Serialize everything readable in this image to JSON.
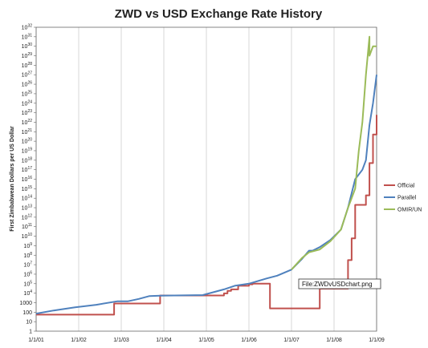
{
  "chart_data": {
    "type": "line",
    "title": "ZWD vs USD Exchange Rate History",
    "ylabel": "First Zimbabwean Dollars per US Dollar",
    "xlabel": "",
    "y_scale": "log10",
    "ylim": [
      1,
      1e+32
    ],
    "xlim": [
      "2001-01-01",
      "2009-01-01"
    ],
    "x_tick_labels": [
      "1/1/01",
      "1/1/02",
      "1/1/03",
      "1/1/04",
      "1/1/05",
      "1/1/06",
      "1/1/07",
      "1/1/08",
      "1/1/09"
    ],
    "y_tick_labels": [
      {
        "base": "1",
        "exp": ""
      },
      {
        "base": "10",
        "exp": ""
      },
      {
        "base": "100",
        "exp": ""
      },
      {
        "base": "1000",
        "exp": ""
      },
      {
        "base": "10",
        "exp": "4"
      },
      {
        "base": "10",
        "exp": "5"
      },
      {
        "base": "10",
        "exp": "6"
      },
      {
        "base": "10",
        "exp": "7"
      },
      {
        "base": "10",
        "exp": "8"
      },
      {
        "base": "10",
        "exp": "9"
      },
      {
        "base": "10",
        "exp": "10"
      },
      {
        "base": "10",
        "exp": "11"
      },
      {
        "base": "10",
        "exp": "12"
      },
      {
        "base": "10",
        "exp": "13"
      },
      {
        "base": "10",
        "exp": "14"
      },
      {
        "base": "10",
        "exp": "15"
      },
      {
        "base": "10",
        "exp": "16"
      },
      {
        "base": "10",
        "exp": "17"
      },
      {
        "base": "10",
        "exp": "18"
      },
      {
        "base": "10",
        "exp": "19"
      },
      {
        "base": "10",
        "exp": "20"
      },
      {
        "base": "10",
        "exp": "21"
      },
      {
        "base": "10",
        "exp": "22"
      },
      {
        "base": "10",
        "exp": "23"
      },
      {
        "base": "10",
        "exp": "24"
      },
      {
        "base": "10",
        "exp": "25"
      },
      {
        "base": "10",
        "exp": "26"
      },
      {
        "base": "10",
        "exp": "27"
      },
      {
        "base": "10",
        "exp": "28"
      },
      {
        "base": "10",
        "exp": "29"
      },
      {
        "base": "10",
        "exp": "30"
      },
      {
        "base": "10",
        "exp": "31"
      },
      {
        "base": "10",
        "exp": "32"
      }
    ],
    "grid": "vertical",
    "legend_position": "right",
    "annotation": "File:ZWDvUSDchart.png",
    "series": [
      {
        "name": "Official",
        "color": "#c0504d",
        "step": true,
        "points": [
          [
            "2001-01-01",
            55
          ],
          [
            "2001-03-01",
            55
          ],
          [
            "2002-07-01",
            55
          ],
          [
            "2002-11-01",
            55
          ],
          [
            "2002-11-01",
            824
          ],
          [
            "2003-12-01",
            824
          ],
          [
            "2003-12-01",
            5730
          ],
          [
            "2005-06-01",
            9500
          ],
          [
            "2005-07-01",
            17500
          ],
          [
            "2005-08-01",
            25000
          ],
          [
            "2005-10-01",
            26000
          ],
          [
            "2005-10-01",
            60000
          ],
          [
            "2006-01-01",
            85000
          ],
          [
            "2006-02-01",
            99000
          ],
          [
            "2006-07-01",
            99000
          ],
          [
            "2006-07-01",
            250
          ],
          [
            "2006-08-01",
            250
          ],
          [
            "2007-09-01",
            250
          ],
          [
            "2007-09-01",
            30000
          ],
          [
            "2008-04-01",
            30000
          ],
          [
            "2008-05-01",
            30000000.0
          ],
          [
            "2008-06-01",
            6000000000.0
          ],
          [
            "2008-07-01",
            20000000000000.0
          ],
          [
            "2008-10-01",
            200000000000000.0
          ],
          [
            "2008-11-01",
            5e+17
          ],
          [
            "2008-12-01",
            5e+20
          ],
          [
            "2009-01-01",
            6e+22
          ]
        ]
      },
      {
        "name": "Parallel",
        "color": "#4f81bd",
        "step": false,
        "points": [
          [
            "2001-01-01",
            70
          ],
          [
            "2001-06-01",
            150
          ],
          [
            "2001-12-01",
            320
          ],
          [
            "2002-06-01",
            600
          ],
          [
            "2002-12-01",
            1400
          ],
          [
            "2003-03-01",
            1400
          ],
          [
            "2003-06-01",
            2500
          ],
          [
            "2003-09-01",
            5000
          ],
          [
            "2003-12-01",
            5500
          ],
          [
            "2004-06-01",
            5800
          ],
          [
            "2004-12-01",
            6300
          ],
          [
            "2005-06-01",
            25000
          ],
          [
            "2005-09-01",
            60000
          ],
          [
            "2006-01-01",
            100000
          ],
          [
            "2006-06-01",
            350000
          ],
          [
            "2006-09-01",
            700000
          ],
          [
            "2007-01-01",
            3000000
          ],
          [
            "2007-04-01",
            40000000.0
          ],
          [
            "2007-06-01",
            300000000.0
          ],
          [
            "2007-07-01",
            300000000.0
          ],
          [
            "2007-09-01",
            700000000.0
          ],
          [
            "2007-12-01",
            4000000000.0
          ],
          [
            "2008-03-01",
            50000000000.0
          ],
          [
            "2008-05-01",
            10000000000000.0
          ],
          [
            "2008-07-01",
            1e+16
          ],
          [
            "2008-09-01",
            1e+17
          ],
          [
            "2008-10-01",
            1e+18
          ],
          [
            "2008-11-01",
            5e+21
          ],
          [
            "2008-12-01",
            1e+24
          ],
          [
            "2009-01-01",
            1e+27
          ]
        ]
      },
      {
        "name": "OMIR/UN",
        "color": "#9bbb59",
        "step": false,
        "points": [
          [
            "2007-01-01",
            3000000
          ],
          [
            "2007-04-01",
            50000000.0
          ],
          [
            "2007-06-01",
            200000000.0
          ],
          [
            "2007-09-01",
            400000000.0
          ],
          [
            "2007-12-01",
            3000000000.0
          ],
          [
            "2008-03-01",
            50000000000.0
          ],
          [
            "2008-05-01",
            10000000000000.0
          ],
          [
            "2008-06-01",
            100000000000000.0
          ],
          [
            "2008-07-01",
            1000000000000000.0
          ],
          [
            "2008-08-01",
            1e+19
          ],
          [
            "2008-09-01",
            1e+22
          ],
          [
            "2008-10-01",
            1e+27
          ],
          [
            "2008-11-01",
            1e+31
          ],
          [
            "2008-11-01",
            1e+29
          ],
          [
            "2008-12-01",
            1e+30
          ],
          [
            "2009-01-01",
            1e+30
          ]
        ]
      }
    ]
  }
}
